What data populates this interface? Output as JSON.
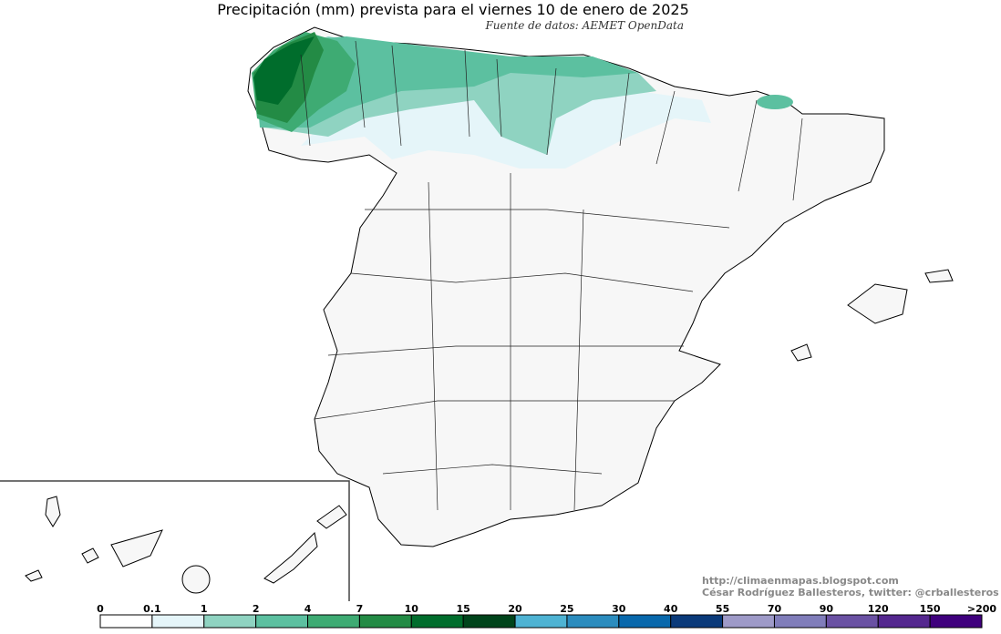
{
  "title": "Precipitación (mm) prevista para el viernes 10 de enero de 2025",
  "source": "Fuente de datos: AEMET OpenData",
  "credits": [
    "http://climaenmapas.blogspot.com",
    "César Rodríguez Ballesteros, twitter: @crballesteros"
  ],
  "legend": {
    "labels": [
      "0",
      "0.1",
      "1",
      "2",
      "4",
      "7",
      "10",
      "15",
      "20",
      "25",
      "30",
      "40",
      "55",
      "70",
      "90",
      "120",
      "150",
      ">200"
    ],
    "colors": [
      "#ffffff",
      "#e5f5f9",
      "#8fd3c1",
      "#5cc0a0",
      "#3eab73",
      "#238b45",
      "#006d2c",
      "#00441b",
      "#4eb3d3",
      "#2b8cbe",
      "#0868ac",
      "#0a3a7a",
      "#9e9ac8",
      "#807dba",
      "#6a51a3",
      "#54278f",
      "#3f007d"
    ]
  }
}
